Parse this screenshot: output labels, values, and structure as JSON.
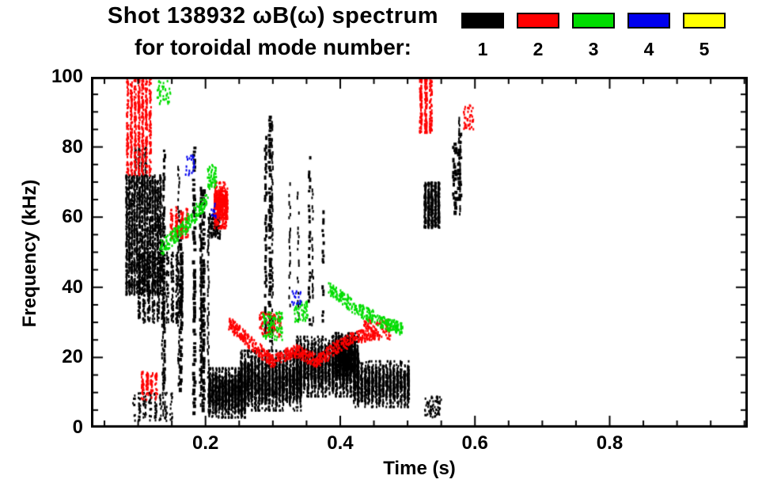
{
  "header": {
    "title": "Shot 138932 ωB(ω) spectrum",
    "subtitle": "for toroidal mode number:"
  },
  "legend": {
    "entries": [
      {
        "label": "1",
        "color": "#000000"
      },
      {
        "label": "2",
        "color": "#ff0000"
      },
      {
        "label": "3",
        "color": "#00dd00"
      },
      {
        "label": "4",
        "color": "#0000ee"
      },
      {
        "label": "5",
        "color": "#ffff00"
      }
    ]
  },
  "chart_data": {
    "type": "scatter",
    "title": "Shot 138932 ωB(ω) spectrum for toroidal mode number",
    "xlabel": "Time (s)",
    "ylabel": "Frequency (kHz)",
    "xlim": [
      0.03,
      1.005
    ],
    "ylim": [
      0,
      100
    ],
    "xticks": [
      0.2,
      0.4,
      0.6,
      0.8
    ],
    "xtick_labels": [
      "0.2",
      "0.4",
      "0.6",
      "0.8"
    ],
    "yticks": [
      0,
      20,
      40,
      60,
      80,
      100
    ],
    "ytick_labels": [
      "0",
      "20",
      "40",
      "60",
      "80",
      "100"
    ],
    "minor_x_step": 0.05,
    "minor_y_step": 5,
    "grid": false,
    "legend_position": "top-right",
    "series": [
      {
        "name": "n=1",
        "color": "#000000",
        "clusters": [
          {
            "type": "scatter",
            "t": [
              0.082,
              0.136
            ],
            "f": [
              38,
              72
            ],
            "count": 2000,
            "cols": 14
          },
          {
            "type": "scatter",
            "t": [
              0.1,
              0.17
            ],
            "f": [
              30,
              50
            ],
            "count": 700,
            "cols": 10
          },
          {
            "type": "scatter",
            "t": [
              0.095,
              0.115
            ],
            "f": [
              72,
              80
            ],
            "count": 90,
            "cols": 4
          },
          {
            "type": "vlines",
            "t": [
              0.128,
              0.205
            ],
            "lines": 9,
            "fbot": [
              3,
              12
            ],
            "ftop": [
              58,
              83
            ]
          },
          {
            "type": "scatter",
            "t": [
              0.205,
              0.262
            ],
            "f": [
              3,
              17
            ],
            "count": 1500,
            "cols": 12,
            "gauss": true
          },
          {
            "type": "scatter",
            "t": [
              0.252,
              0.345
            ],
            "f": [
              5,
              22
            ],
            "count": 2300,
            "cols": 18,
            "gauss": true
          },
          {
            "type": "scatter",
            "t": [
              0.335,
              0.43
            ],
            "f": [
              9,
              26
            ],
            "count": 2300,
            "cols": 18,
            "gauss": true
          },
          {
            "type": "scatter",
            "t": [
              0.42,
              0.505
            ],
            "f": [
              6,
              19
            ],
            "count": 1300,
            "cols": 16,
            "gauss": true
          },
          {
            "type": "vlines",
            "t": [
              0.283,
              0.307
            ],
            "lines": 3,
            "fbot": [
              20,
              28
            ],
            "ftop": [
              78,
              92
            ]
          },
          {
            "type": "vlines",
            "t": [
              0.315,
              0.375
            ],
            "lines": 5,
            "fbot": [
              26,
              36
            ],
            "ftop": [
              55,
              80
            ],
            "sparse": true
          },
          {
            "type": "scatter",
            "t": [
              0.388,
              0.425
            ],
            "f": [
              15,
              27
            ],
            "count": 900,
            "cols": 8,
            "gauss": true
          },
          {
            "type": "scatter",
            "t": [
              0.525,
              0.55
            ],
            "f": [
              57,
              70
            ],
            "count": 550,
            "cols": 5
          },
          {
            "type": "vlines",
            "t": [
              0.563,
              0.6
            ],
            "lines": 4,
            "fbot": [
              60,
              68
            ],
            "ftop": [
              80,
              90
            ],
            "sparse": true
          },
          {
            "type": "scatter",
            "t": [
              0.205,
              0.222
            ],
            "f": [
              54,
              61
            ],
            "count": 110
          },
          {
            "type": "scatter",
            "t": [
              0.092,
              0.155
            ],
            "f": [
              2,
              10
            ],
            "count": 140,
            "cols": 8
          },
          {
            "type": "scatter",
            "t": [
              0.525,
              0.55
            ],
            "f": [
              3,
              9
            ],
            "count": 70
          }
        ]
      },
      {
        "name": "n=2",
        "color": "#ff0000",
        "clusters": [
          {
            "type": "scatter",
            "t": [
              0.083,
              0.122
            ],
            "f": [
              72,
              100
            ],
            "count": 650,
            "cols": 7
          },
          {
            "type": "scatter",
            "t": [
              0.105,
              0.132
            ],
            "f": [
              8,
              16
            ],
            "count": 110,
            "cols": 4
          },
          {
            "type": "scatter",
            "t": [
              0.148,
              0.178
            ],
            "f": [
              54,
              63
            ],
            "count": 150,
            "cols": 4
          },
          {
            "type": "scatter",
            "t": [
              0.213,
              0.233
            ],
            "f": [
              57,
              70
            ],
            "count": 480,
            "gauss": true
          },
          {
            "type": "chirp",
            "pts": [
              [
                0.235,
                30
              ],
              [
                0.268,
                24
              ],
              [
                0.3,
                19
              ],
              [
                0.335,
                22
              ]
            ],
            "count": 330,
            "jitter": 1.8
          },
          {
            "type": "chirp",
            "pts": [
              [
                0.335,
                22
              ],
              [
                0.365,
                19
              ],
              [
                0.395,
                23
              ],
              [
                0.425,
                26
              ],
              [
                0.455,
                27
              ]
            ],
            "count": 330,
            "jitter": 1.8
          },
          {
            "type": "scatter",
            "t": [
              0.435,
              0.475
            ],
            "f": [
              25,
              31
            ],
            "count": 110
          },
          {
            "type": "scatter",
            "t": [
              0.518,
              0.54
            ],
            "f": [
              84,
              100
            ],
            "count": 260,
            "cols": 3
          },
          {
            "type": "scatter",
            "t": [
              0.583,
              0.598
            ],
            "f": [
              85,
              92
            ],
            "count": 45
          },
          {
            "type": "scatter",
            "t": [
              0.28,
              0.312
            ],
            "f": [
              26,
              33
            ],
            "count": 90
          }
        ]
      },
      {
        "name": "n=3",
        "color": "#00dd00",
        "clusters": [
          {
            "type": "chirp",
            "pts": [
              [
                0.133,
                51
              ],
              [
                0.168,
                57
              ],
              [
                0.202,
                65
              ]
            ],
            "count": 200,
            "jitter": 2.2
          },
          {
            "type": "scatter",
            "t": [
              0.203,
              0.216
            ],
            "f": [
              68,
              75
            ],
            "count": 55
          },
          {
            "type": "chirp",
            "pts": [
              [
                0.382,
                40
              ],
              [
                0.425,
                34
              ],
              [
                0.465,
                30
              ],
              [
                0.492,
                28
              ]
            ],
            "count": 300,
            "jitter": 1.8
          },
          {
            "type": "scatter",
            "t": [
              0.285,
              0.315
            ],
            "f": [
              25,
              33
            ],
            "count": 100
          },
          {
            "type": "scatter",
            "t": [
              0.128,
              0.148
            ],
            "f": [
              92,
              99
            ],
            "count": 40
          },
          {
            "type": "scatter",
            "t": [
              0.332,
              0.352
            ],
            "f": [
              30,
              36
            ],
            "count": 55
          }
        ]
      },
      {
        "name": "n=4",
        "color": "#0000ee",
        "clusters": [
          {
            "type": "scatter",
            "t": [
              0.17,
              0.184
            ],
            "f": [
              72,
              78
            ],
            "count": 22
          },
          {
            "type": "scatter",
            "t": [
              0.328,
              0.342
            ],
            "f": [
              34,
              39
            ],
            "count": 18
          },
          {
            "type": "scatter",
            "t": [
              0.208,
              0.216
            ],
            "f": [
              60,
              64
            ],
            "count": 12
          }
        ]
      },
      {
        "name": "n=5",
        "color": "#ffff00",
        "clusters": []
      }
    ]
  }
}
